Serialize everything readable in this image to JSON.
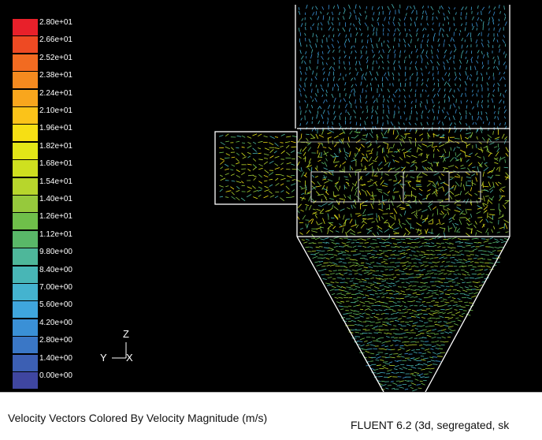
{
  "colorbar": {
    "labels": [
      "2.80e+01",
      "2.66e+01",
      "2.52e+01",
      "2.38e+01",
      "2.24e+01",
      "2.10e+01",
      "1.96e+01",
      "1.82e+01",
      "1.68e+01",
      "1.54e+01",
      "1.40e+01",
      "1.26e+01",
      "1.12e+01",
      "9.80e+00",
      "8.40e+00",
      "7.00e+00",
      "5.60e+00",
      "4.20e+00",
      "2.80e+00",
      "1.40e+00",
      "0.00e+00"
    ],
    "colors": [
      "#e8202a",
      "#ee4a23",
      "#f26b21",
      "#f58a1f",
      "#f9a61d",
      "#fbc319",
      "#f6df14",
      "#e3e617",
      "#cfe01f",
      "#b7d62c",
      "#96c93c",
      "#6fbf4a",
      "#59b868",
      "#4eb79a",
      "#48b6b6",
      "#44b3cf",
      "#3fa6dd",
      "#3a90d6",
      "#3a77c6",
      "#3c5fb3",
      "#3f46a0"
    ]
  },
  "axes": {
    "z": "Z",
    "y": "Y",
    "x": "X"
  },
  "footer": {
    "title": "Velocity Vectors Colored By Velocity Magnitude (m/s)",
    "version": "FLUENT 6.2 (3d, segregated, sk"
  }
}
